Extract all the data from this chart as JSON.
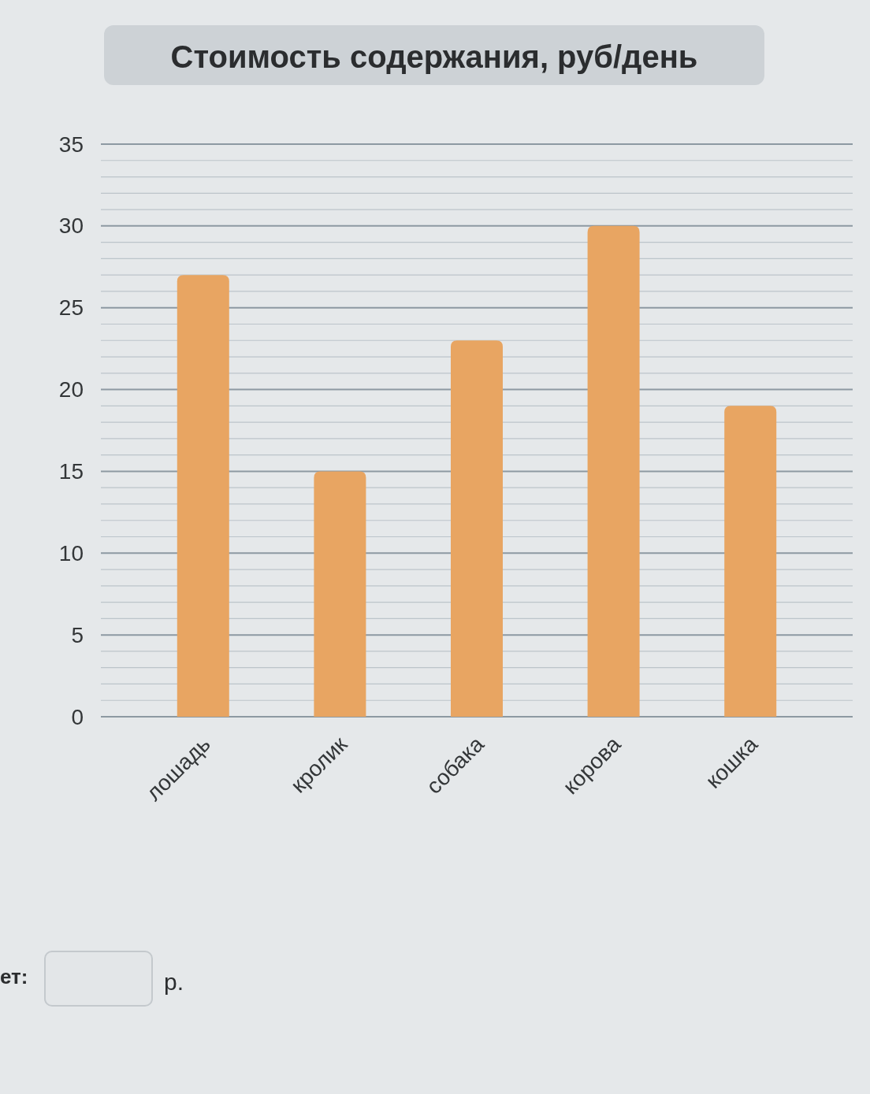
{
  "chart_data": {
    "type": "bar",
    "title": "Стоимость содержания, руб/день",
    "categories": [
      "лошадь",
      "кролик",
      "собака",
      "корова",
      "кошка"
    ],
    "values": [
      27,
      15,
      23,
      30,
      19
    ],
    "color": "#e8a562",
    "ylim": [
      0,
      35
    ],
    "yticks": [
      0,
      {
        "value": 1,
        "label": null
      },
      {
        "value": 2,
        "label": null
      },
      {
        "value": 3,
        "label": null
      },
      {
        "value": 4,
        "label": null
      },
      5,
      {
        "value": 6,
        "label": null
      },
      {
        "value": 7,
        "label": null
      },
      {
        "value": 8,
        "label": null
      },
      {
        "value": 9,
        "label": null
      },
      10,
      {
        "value": 11,
        "label": null
      },
      {
        "value": 12,
        "label": null
      },
      {
        "value": 13,
        "label": null
      },
      {
        "value": 14,
        "label": null
      },
      15,
      {
        "value": 16,
        "label": null
      },
      {
        "value": 17,
        "label": null
      },
      {
        "value": 18,
        "label": null
      },
      {
        "value": 19,
        "label": null
      },
      20,
      {
        "value": 21,
        "label": null
      },
      {
        "value": 22,
        "label": null
      },
      {
        "value": 23,
        "label": null
      },
      {
        "value": 24,
        "label": null
      },
      25,
      {
        "value": 26,
        "label": null
      },
      {
        "value": 27,
        "label": null
      },
      {
        "value": 28,
        "label": null
      },
      {
        "value": 29,
        "label": null
      },
      30,
      {
        "value": 31,
        "label": null
      },
      {
        "value": 32,
        "label": null
      },
      {
        "value": 33,
        "label": null
      },
      {
        "value": 34,
        "label": null
      },
      35
    ],
    "grid": "y",
    "annotations": [
      "ет:",
      "р."
    ]
  }
}
